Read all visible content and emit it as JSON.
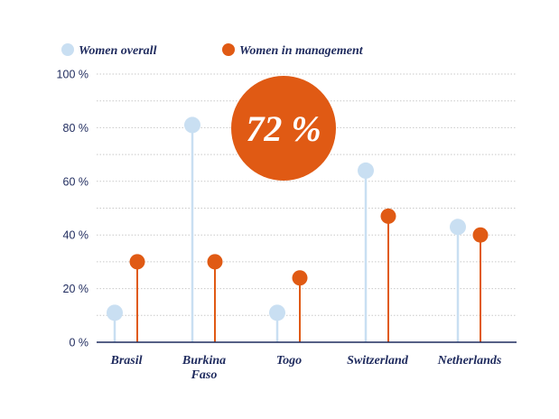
{
  "colors": {
    "overall": "#c9dff2",
    "management": "#e05a14",
    "text": "#1f2b5e",
    "grid": "#c9c9c9",
    "axis": "#1f2b5e",
    "highlight_bg": "#e05a14",
    "highlight_text": "#ffffff"
  },
  "chart_data": {
    "type": "lollipop",
    "title": "",
    "xlabel": "",
    "ylabel": "",
    "ylim": [
      0,
      100
    ],
    "y_ticks": [
      {
        "value": 0,
        "label": "0 %"
      },
      {
        "value": 20,
        "label": "20 %"
      },
      {
        "value": 40,
        "label": "40 %"
      },
      {
        "value": 60,
        "label": "60 %"
      },
      {
        "value": 80,
        "label": "80 %"
      },
      {
        "value": 100,
        "label": "100 %"
      }
    ],
    "gridlines_at": [
      0,
      10,
      20,
      30,
      40,
      50,
      60,
      70,
      80,
      90,
      100
    ],
    "grid": "dotted",
    "legend_position": "top-left",
    "categories": [
      [
        "Brasil"
      ],
      [
        "Burkina",
        "Faso"
      ],
      [
        "Togo"
      ],
      [
        "Switzerland"
      ],
      [
        "Netherlands"
      ]
    ],
    "series": [
      {
        "name": "Women overall",
        "color_key": "overall",
        "values": [
          11,
          81,
          11,
          64,
          43
        ]
      },
      {
        "name": "Women in management",
        "color_key": "management",
        "values": [
          30,
          30,
          24,
          47,
          40
        ]
      }
    ],
    "highlight": {
      "text": "72 %"
    }
  }
}
